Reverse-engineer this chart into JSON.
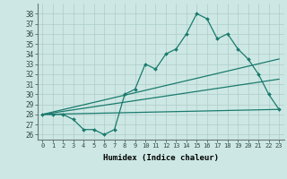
{
  "title": "",
  "xlabel": "Humidex (Indice chaleur)",
  "ylabel": "",
  "background_color": "#cde8e4",
  "grid_color": "#b0ccc8",
  "line_color": "#1a7a6e",
  "xlim": [
    -0.5,
    23.5
  ],
  "ylim": [
    25.5,
    39.0
  ],
  "xticks": [
    0,
    1,
    2,
    3,
    4,
    5,
    6,
    7,
    8,
    9,
    10,
    11,
    12,
    13,
    14,
    15,
    16,
    17,
    18,
    19,
    20,
    21,
    22,
    23
  ],
  "yticks": [
    26,
    27,
    28,
    29,
    30,
    31,
    32,
    33,
    34,
    35,
    36,
    37,
    38
  ],
  "series": [
    {
      "x": [
        0,
        1,
        2,
        3,
        4,
        5,
        6,
        7,
        8,
        9,
        10,
        11,
        12,
        13,
        14,
        15,
        16,
        17,
        18,
        19,
        20,
        21,
        22,
        23
      ],
      "y": [
        28,
        28,
        28,
        27.5,
        26.5,
        26.5,
        26,
        26.5,
        30.0,
        30.5,
        33.0,
        32.5,
        34.0,
        34.5,
        36.0,
        38.0,
        37.5,
        35.5,
        36.0,
        34.5,
        33.5,
        32.0,
        30.0,
        28.5
      ],
      "has_markers": true
    },
    {
      "x": [
        0,
        23
      ],
      "y": [
        28,
        33.5
      ],
      "has_markers": false
    },
    {
      "x": [
        0,
        23
      ],
      "y": [
        28,
        31.5
      ],
      "has_markers": false
    },
    {
      "x": [
        0,
        23
      ],
      "y": [
        28,
        28.5
      ],
      "has_markers": false
    }
  ]
}
